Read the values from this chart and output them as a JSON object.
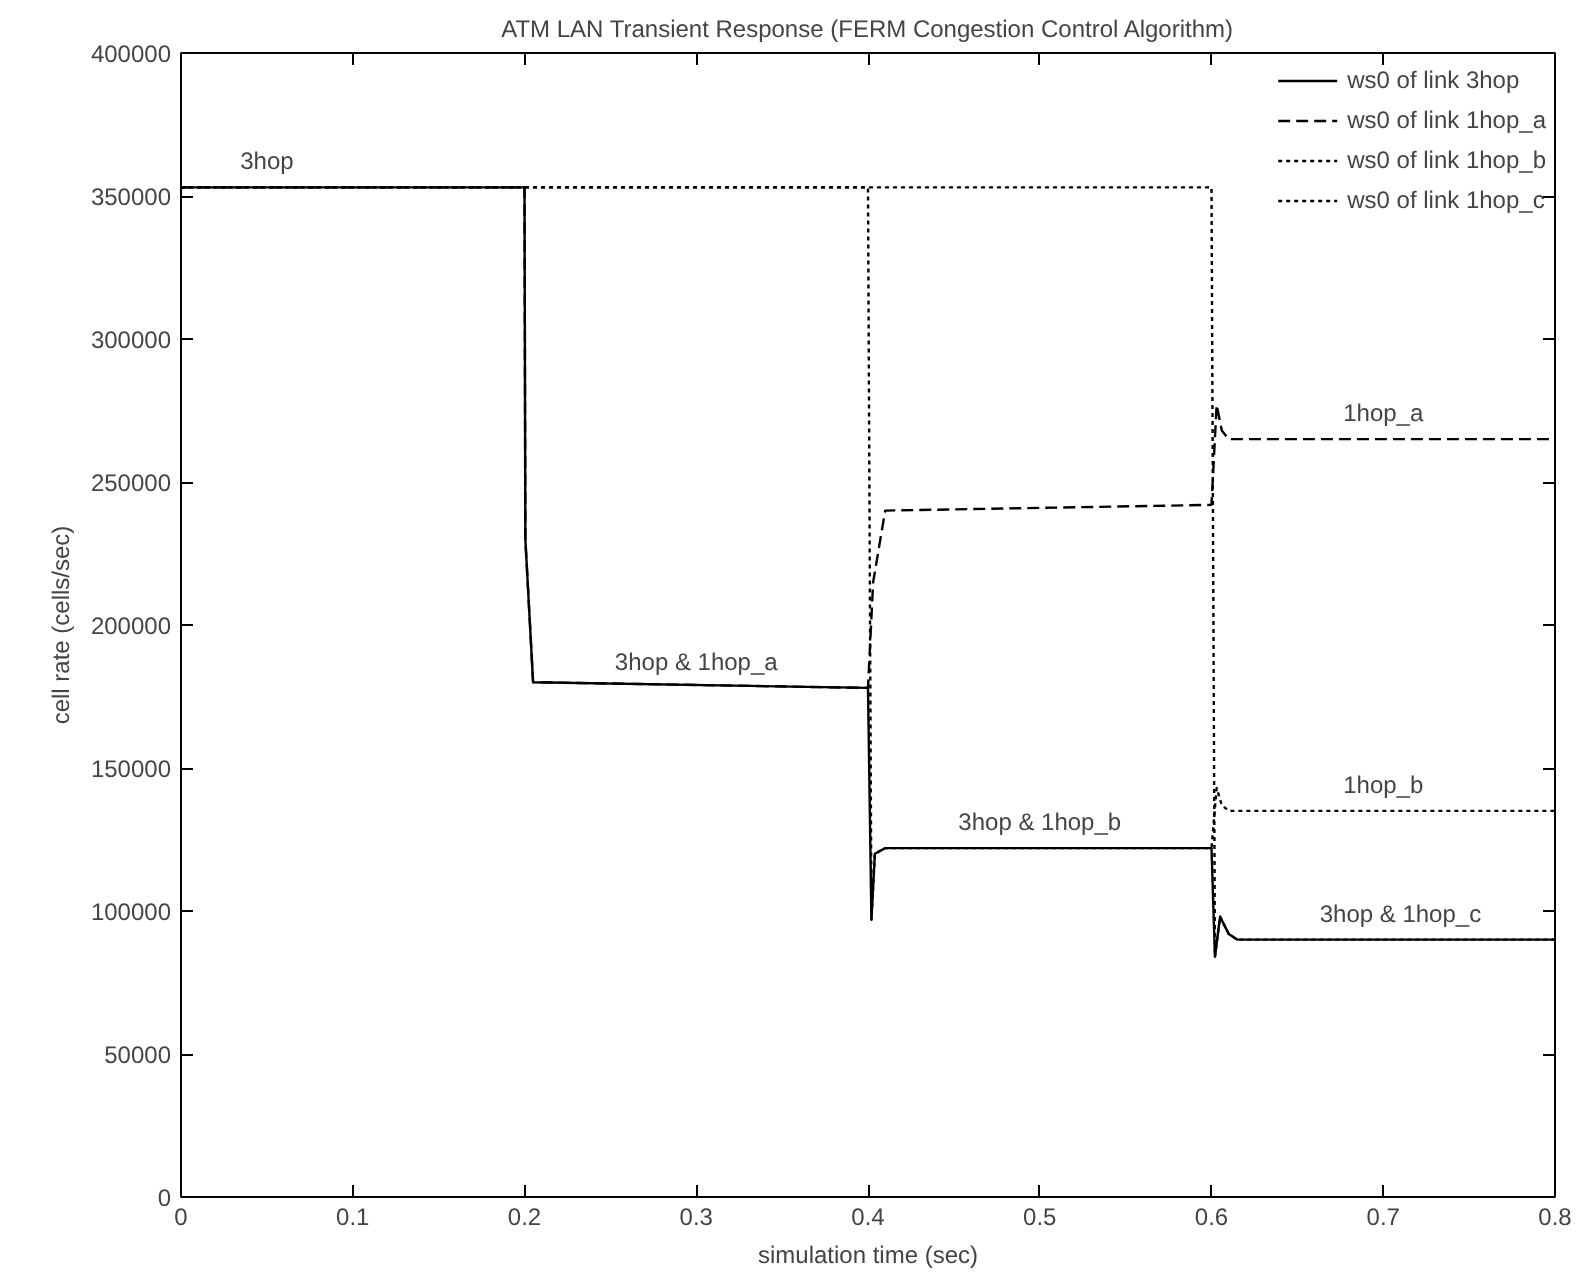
{
  "chart_data": {
    "type": "line",
    "title": "ATM LAN Transient Response (FERM Congestion Control Algorithm)",
    "xlabel": "simulation time (sec)",
    "ylabel": "cell rate (cells/sec)",
    "xlim": [
      0,
      0.8
    ],
    "ylim": [
      0,
      400000
    ],
    "xticks": [
      0,
      0.1,
      0.2,
      0.3,
      0.4,
      0.5,
      0.6,
      0.7,
      0.8
    ],
    "yticks": [
      0,
      50000,
      100000,
      150000,
      200000,
      250000,
      300000,
      350000,
      400000
    ],
    "grid": false,
    "legend": "top right",
    "marker": "none",
    "series": [
      {
        "name": "ws0 of link 3hop",
        "color": "#000000",
        "line_style": "solid",
        "x": [
          0,
          0.2,
          0.2005,
          0.205,
          0.4,
          0.402,
          0.404,
          0.41,
          0.6,
          0.602,
          0.605,
          0.61,
          0.615,
          0.8
        ],
        "values": [
          353000,
          353000,
          230000,
          180000,
          178000,
          97000,
          120000,
          122000,
          122000,
          84000,
          98000,
          92000,
          90000,
          90000
        ]
      },
      {
        "name": "ws0 of link 1hop_a",
        "color": "#000000",
        "line_style": "dashed",
        "x": [
          0,
          0.2,
          0.2005,
          0.205,
          0.4,
          0.403,
          0.41,
          0.6,
          0.603,
          0.606,
          0.61,
          0.8
        ],
        "values": [
          353000,
          353000,
          230000,
          180000,
          178000,
          215000,
          240000,
          242000,
          277000,
          268000,
          265000,
          265000
        ]
      },
      {
        "name": "ws0 of link 1hop_b",
        "color": "#000000",
        "line_style": "dotted",
        "x": [
          0,
          0.4,
          0.402,
          0.404,
          0.41,
          0.6,
          0.603,
          0.606,
          0.61,
          0.8
        ],
        "values": [
          353000,
          353000,
          97000,
          120000,
          122000,
          122000,
          143000,
          137000,
          135000,
          135000
        ]
      },
      {
        "name": "ws0 of link 1hop_c",
        "color": "#000000",
        "line_style": "dotted",
        "x": [
          0,
          0.6,
          0.602,
          0.605,
          0.61,
          0.615,
          0.8
        ],
        "values": [
          353000,
          353000,
          84000,
          98000,
          92000,
          90000,
          90000
        ]
      }
    ],
    "annotations": [
      {
        "text": "3hop",
        "x": 0.05,
        "y": 353000
      },
      {
        "text": "3hop & 1hop_a",
        "x": 0.3,
        "y": 178000
      },
      {
        "text": "3hop & 1hop_b",
        "x": 0.5,
        "y": 122000
      },
      {
        "text": "1hop_a",
        "x": 0.7,
        "y": 265000
      },
      {
        "text": "1hop_b",
        "x": 0.7,
        "y": 135000
      },
      {
        "text": "3hop & 1hop_c",
        "x": 0.71,
        "y": 90000
      }
    ]
  }
}
